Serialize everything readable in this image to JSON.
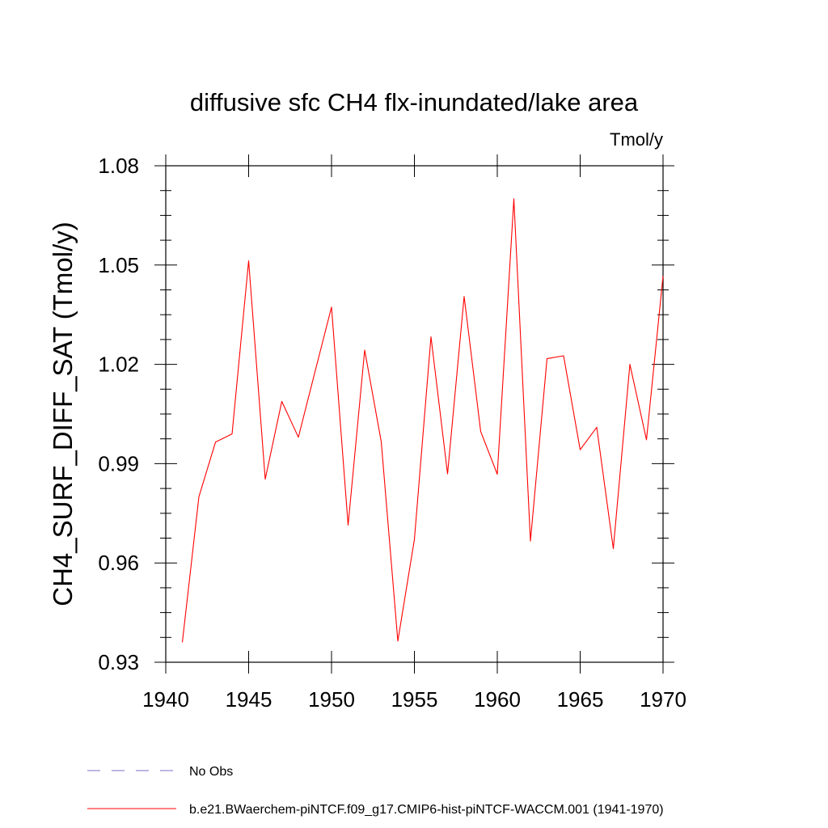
{
  "chart_data": {
    "type": "line",
    "title": "diffusive sfc CH4 flx-inundated/lake area",
    "units": "Tmol/y",
    "ylabel": "CH4_SURF_DIFF_SAT  (Tmol/y)",
    "xlabel": "",
    "xlim": [
      1940,
      1970
    ],
    "ylim": [
      0.93,
      1.08
    ],
    "x_ticks": [
      1940,
      1945,
      1950,
      1955,
      1960,
      1965,
      1970
    ],
    "x_tick_labels": [
      "1940",
      "1945",
      "1950",
      "1955",
      "1960",
      "1965",
      "1970"
    ],
    "y_ticks": [
      0.93,
      0.96,
      0.99,
      1.02,
      1.05,
      1.08
    ],
    "y_tick_labels": [
      "0.93",
      "0.96",
      "0.99",
      "1.02",
      "1.05",
      "1.08"
    ],
    "grid": false,
    "legend_position": "bottom-left",
    "series": [
      {
        "name": "b.e21.BWaerchem-piNTCF.f09_g17.CMIP6-hist-piNTCF-WACCM.001 (1941-1970)",
        "color": "#ff0000",
        "style": "solid",
        "x": [
          1941,
          1942,
          1943,
          1944,
          1945,
          1946,
          1947,
          1948,
          1949,
          1950,
          1951,
          1952,
          1953,
          1954,
          1955,
          1956,
          1957,
          1958,
          1959,
          1960,
          1961,
          1962,
          1963,
          1964,
          1965,
          1966,
          1967,
          1968,
          1969,
          1970
        ],
        "values": [
          0.936,
          0.98,
          0.9965,
          0.999,
          1.0513,
          0.9853,
          1.0088,
          0.998,
          1.0177,
          1.0373,
          0.9714,
          1.0243,
          0.9966,
          0.9364,
          0.9671,
          1.0283,
          0.9869,
          1.0405,
          0.9997,
          0.9868,
          1.07,
          0.9666,
          1.0217,
          1.0226,
          0.9942,
          1.001,
          0.9643,
          1.02,
          0.9972,
          1.0467
        ]
      },
      {
        "name": "No Obs",
        "color": "#7a6fc9",
        "style": "dashed",
        "x": [],
        "values": []
      }
    ]
  }
}
